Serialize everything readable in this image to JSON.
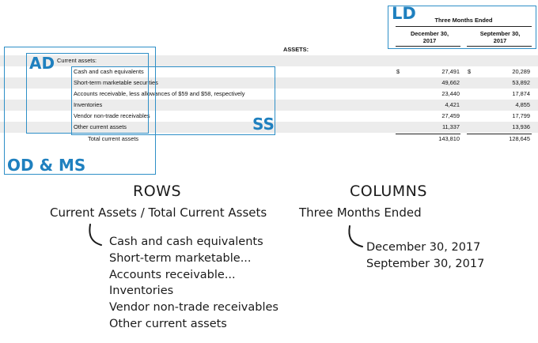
{
  "table": {
    "header_group": "Three Months Ended",
    "col1": "December 30,",
    "col1_year": "2017",
    "col2": "September 30,",
    "col2_year": "2017",
    "section": "ASSETS:",
    "group_label": "Current assets:",
    "currency": "$",
    "rows": [
      {
        "label": "Cash and cash equivalents",
        "v1": "27,491",
        "v2": "20,289"
      },
      {
        "label": "Short-term marketable securities",
        "v1": "49,662",
        "v2": "53,892"
      },
      {
        "label": "Accounts receivable, less allowances of $59 and $58, respectively",
        "v1": "23,440",
        "v2": "17,874"
      },
      {
        "label": "Inventories",
        "v1": "4,421",
        "v2": "4,855"
      },
      {
        "label": "Vendor non-trade receivables",
        "v1": "27,459",
        "v2": "17,799"
      },
      {
        "label": "Other current assets",
        "v1": "11,337",
        "v2": "13,936"
      }
    ],
    "total": {
      "label": "Total current assets",
      "v1": "143,810",
      "v2": "128,645"
    }
  },
  "tags": {
    "ld": "LD",
    "ad": "AD",
    "ss": "SS",
    "odms": "OD & MS"
  },
  "colors": {
    "annotation_blue": "#2e8fc7",
    "tag_blue": "#1f80bf",
    "row_shade": "#ececec"
  },
  "rows_caption": {
    "title": "ROWS",
    "subtitle": "Current Assets / Total Current Assets",
    "items": [
      "Cash and cash equivalents",
      "Short-term marketable...",
      "Accounts receivable...",
      "Inventories",
      "Vendor non-trade receivables",
      "Other current assets"
    ]
  },
  "columns_caption": {
    "title": "COLUMNS",
    "subtitle": "Three Months Ended",
    "items": [
      "December 30, 2017",
      "September 30, 2017"
    ]
  }
}
